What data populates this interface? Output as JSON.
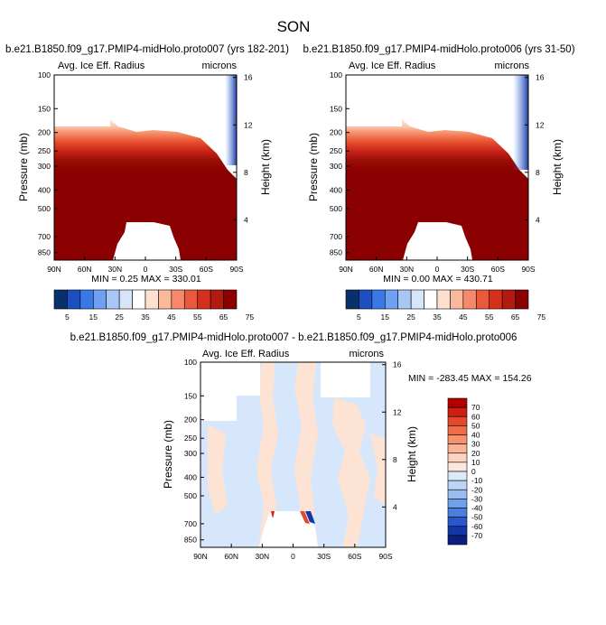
{
  "figure": {
    "season": "SON"
  },
  "chart_data": [
    {
      "type": "heatmap",
      "title": "b.e21.B1850.f09_g17.PMIP4-midHolo.proto007 (yrs 182-201)",
      "variable": "Avg. Ice Eff. Radius",
      "units": "microns",
      "ylabel": "Pressure (mb)",
      "ylabel_right": "Height (km)",
      "x_ticks": [
        "90N",
        "60N",
        "30N",
        "0",
        "30S",
        "60S",
        "90S"
      ],
      "y_ticks": [
        "100",
        "150",
        "200",
        "250",
        "300",
        "400",
        "500",
        "700",
        "850"
      ],
      "y_ticks_right": [
        "16",
        "12",
        "8",
        "4"
      ],
      "stats": "MIN =   0.25   MAX = 330.01",
      "colorbar_labels": [
        "5",
        "15",
        "25",
        "35",
        "45",
        "55",
        "65",
        "75"
      ]
    },
    {
      "type": "heatmap",
      "title": "b.e21.B1850.f09_g17.PMIP4-midHolo.proto006 (yrs 31-50)",
      "variable": "Avg. Ice Eff. Radius",
      "units": "microns",
      "ylabel": "Pressure (mb)",
      "ylabel_right": "Height (km)",
      "x_ticks": [
        "90N",
        "60N",
        "30N",
        "0",
        "30S",
        "60S",
        "90S"
      ],
      "y_ticks": [
        "100",
        "150",
        "200",
        "250",
        "300",
        "400",
        "500",
        "700",
        "850"
      ],
      "y_ticks_right": [
        "16",
        "12",
        "8",
        "4"
      ],
      "stats": "MIN =   0.00   MAX = 430.71",
      "colorbar_labels": [
        "5",
        "15",
        "25",
        "35",
        "45",
        "55",
        "65",
        "75"
      ]
    },
    {
      "type": "heatmap",
      "title": "b.e21.B1850.f09_g17.PMIP4-midHolo.proto007 - b.e21.B1850.f09_g17.PMIP4-midHolo.proto006",
      "variable": "Avg. Ice Eff. Radius",
      "units": "microns",
      "ylabel": "Pressure (mb)",
      "ylabel_right": "Height (km)",
      "x_ticks": [
        "90N",
        "60N",
        "30N",
        "0",
        "30S",
        "60S",
        "90S"
      ],
      "y_ticks": [
        "100",
        "150",
        "200",
        "250",
        "300",
        "400",
        "500",
        "700",
        "850"
      ],
      "y_ticks_right": [
        "16",
        "12",
        "8",
        "4"
      ],
      "stats": "MIN = -283.45   MAX = 154.26",
      "colorbar_labels": [
        "70",
        "60",
        "50",
        "40",
        "30",
        "20",
        "10",
        "0",
        "-10",
        "-20",
        "-30",
        "-40",
        "-50",
        "-60",
        "-70"
      ]
    }
  ],
  "colors": {
    "abs_scale": [
      "#08306b",
      "#1c4fbf",
      "#3a78e6",
      "#6fa1f2",
      "#a7c8f7",
      "#d6e5fa",
      "#ffffff",
      "#fde0cf",
      "#fbb99b",
      "#f6896b",
      "#ea5a3a",
      "#d6301c",
      "#b31a10",
      "#8b0000"
    ],
    "diff_scale": [
      "#b30000",
      "#cf1d10",
      "#e34a2b",
      "#f06c46",
      "#f8926b",
      "#fbb297",
      "#fdd3bf",
      "#fde7da",
      "#dbe9fb",
      "#bcd5f7",
      "#98bdf2",
      "#6fa0ea",
      "#4a7fe0",
      "#2a57cc",
      "#1437a8",
      "#0a1f80"
    ]
  }
}
